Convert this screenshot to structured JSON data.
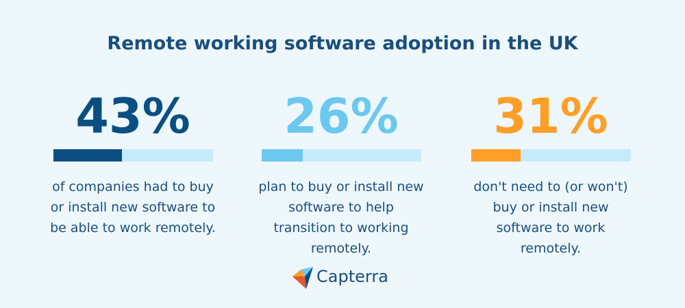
{
  "title": "Remote working software adoption in the UK",
  "stats": [
    {
      "value": 43,
      "label": "43%",
      "color": "#0b4f82",
      "description": "of companies had to buy or install new software to be able to work remotely."
    },
    {
      "value": 26,
      "label": "26%",
      "color": "#6cc8ef",
      "description": "plan to buy or install new software to help transition to working remotely."
    },
    {
      "value": 31,
      "label": "31%",
      "color": "#ff9f2a",
      "description": "don't need to (or won't) buy or install new software to work remotely."
    }
  ],
  "brand": "Capterra"
}
